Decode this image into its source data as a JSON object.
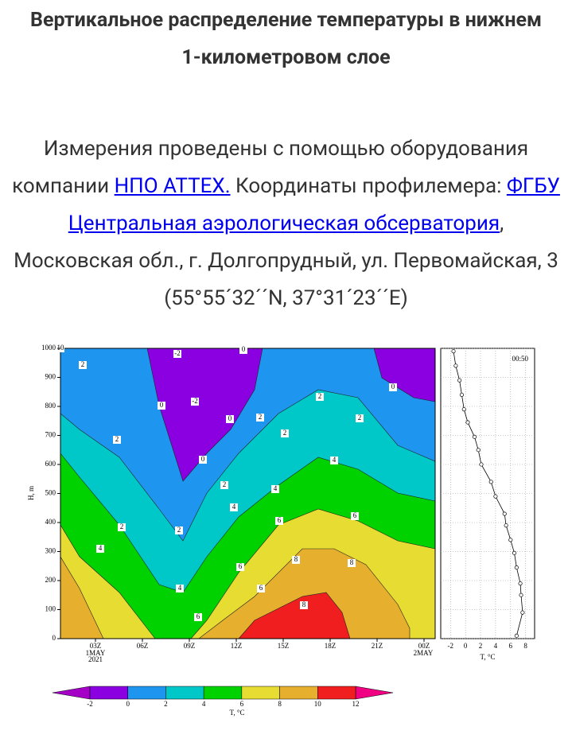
{
  "header": {
    "title": "Вертикальное распределение температуры в нижнем 1-километровом слое"
  },
  "description": {
    "text_before": "Измерения проведены с помощью оборудования компании ",
    "link1": "НПО АТТЕХ.",
    "text_middle": "  Координаты профилемера: ",
    "link2": "ФГБУ Центральная аэрологическая обсерватория",
    "text_after": ", Московская обл., г. Долгопрудный, ул. Первомайская, 3 (55°55´32´´N, 37°31´23´´E)"
  },
  "contour_plot": {
    "y_label": "H, m",
    "ylim": [
      0,
      1000
    ],
    "yticks": [
      0,
      100,
      200,
      300,
      400,
      500,
      600,
      700,
      800,
      900,
      1000
    ],
    "xticks": [
      "03Z",
      "06Z",
      "09Z",
      "12Z",
      "15Z",
      "18Z",
      "21Z",
      "00Z"
    ],
    "start_date": [
      "1MAY",
      "2021"
    ],
    "end_date": "2MAY",
    "contour_labels": [
      -2,
      -2,
      0,
      0,
      0,
      0,
      0,
      2,
      2,
      2,
      2,
      2,
      2,
      2,
      2,
      2,
      4,
      4,
      4,
      4,
      4,
      6,
      6,
      6,
      6,
      6,
      8,
      8,
      8,
      10
    ]
  },
  "colorbar": {
    "label": "T, °C",
    "levels": [
      -2,
      0,
      2,
      4,
      6,
      8,
      10,
      12
    ],
    "colors": [
      "#a400c6",
      "#8a00e0",
      "#1e96f0",
      "#00c8c8",
      "#00d200",
      "#e6dc32",
      "#e6af2d",
      "#f01e1e",
      "#f00082"
    ]
  },
  "profile": {
    "time_label": "00:50",
    "x_label": "T, °C",
    "xlim": [
      -3.3,
      9.2
    ],
    "xticks": [
      -2,
      0,
      2,
      4,
      6,
      8
    ],
    "heights": [
      10,
      90,
      150,
      190,
      245,
      295,
      340,
      390,
      430,
      490,
      540,
      600,
      650,
      695,
      745,
      790,
      840,
      890,
      940,
      990
    ],
    "temperatures": [
      6.8,
      7.6,
      7.4,
      7.3,
      6.8,
      6.5,
      6.0,
      5.4,
      5.2,
      4.0,
      3.4,
      2.1,
      1.7,
      1.2,
      0.3,
      -0.2,
      -0.5,
      -0.8,
      -1.3,
      -1.6
    ]
  }
}
